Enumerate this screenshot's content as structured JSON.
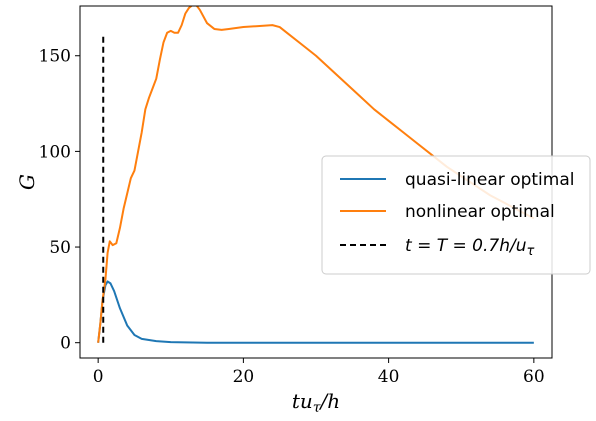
{
  "chart_data": {
    "type": "line",
    "xlabel": "tuτ/h",
    "ylabel": "G",
    "xlim": [
      -2.5,
      62.5
    ],
    "ylim": [
      -8,
      176
    ],
    "x_ticks": [
      0,
      20,
      40,
      60
    ],
    "y_ticks": [
      0,
      50,
      100,
      150
    ],
    "grid": false,
    "legend_position": "center-right",
    "series": [
      {
        "name": "quasi-linear optimal",
        "style": "solid",
        "color": "#1f77b4",
        "points": [
          [
            0,
            0
          ],
          [
            0.3,
            10
          ],
          [
            0.6,
            22
          ],
          [
            1.0,
            30
          ],
          [
            1.3,
            32
          ],
          [
            1.7,
            31
          ],
          [
            2.2,
            27
          ],
          [
            3,
            18
          ],
          [
            4,
            9
          ],
          [
            5,
            4
          ],
          [
            6,
            2
          ],
          [
            8,
            0.8
          ],
          [
            10,
            0.3
          ],
          [
            15,
            0
          ],
          [
            20,
            0
          ],
          [
            30,
            0
          ],
          [
            40,
            0
          ],
          [
            50,
            0
          ],
          [
            60,
            0
          ]
        ]
      },
      {
        "name": "nonlinear optimal",
        "style": "solid",
        "color": "#ff7f0e",
        "points": [
          [
            0,
            0
          ],
          [
            0.3,
            10
          ],
          [
            0.6,
            22
          ],
          [
            1.0,
            33
          ],
          [
            1.3,
            47
          ],
          [
            1.6,
            53
          ],
          [
            2.0,
            51
          ],
          [
            2.5,
            52
          ],
          [
            3,
            60
          ],
          [
            3.5,
            70
          ],
          [
            4,
            78
          ],
          [
            4.5,
            86
          ],
          [
            5,
            90
          ],
          [
            5.5,
            100
          ],
          [
            6,
            110
          ],
          [
            6.5,
            122
          ],
          [
            7,
            128
          ],
          [
            7.5,
            133
          ],
          [
            8,
            138
          ],
          [
            8.5,
            148
          ],
          [
            9,
            157
          ],
          [
            9.5,
            162
          ],
          [
            10,
            163
          ],
          [
            10.5,
            162
          ],
          [
            11,
            162
          ],
          [
            11.5,
            166
          ],
          [
            12,
            172
          ],
          [
            12.5,
            175
          ],
          [
            13,
            176.5
          ],
          [
            13.5,
            176.5
          ],
          [
            14,
            174
          ],
          [
            15,
            167
          ],
          [
            16,
            164
          ],
          [
            17,
            163.5
          ],
          [
            18,
            164
          ],
          [
            19,
            164.5
          ],
          [
            20,
            165
          ],
          [
            22,
            165.5
          ],
          [
            24,
            166
          ],
          [
            25,
            165
          ],
          [
            26,
            162
          ],
          [
            28,
            156
          ],
          [
            30,
            150
          ],
          [
            32,
            143
          ],
          [
            34,
            136
          ],
          [
            36,
            129
          ],
          [
            38,
            122
          ],
          [
            40,
            116
          ],
          [
            42,
            110
          ],
          [
            44,
            104
          ],
          [
            46,
            98
          ],
          [
            48,
            92
          ],
          [
            50,
            87
          ],
          [
            52,
            82
          ],
          [
            54,
            77
          ],
          [
            56,
            73
          ],
          [
            58,
            69
          ],
          [
            60,
            65
          ]
        ]
      },
      {
        "name": "t = T = 0.7h/uτ",
        "style": "dashed",
        "color": "#000000",
        "points": [
          [
            0.7,
            0
          ],
          [
            0.7,
            160
          ]
        ]
      }
    ]
  }
}
